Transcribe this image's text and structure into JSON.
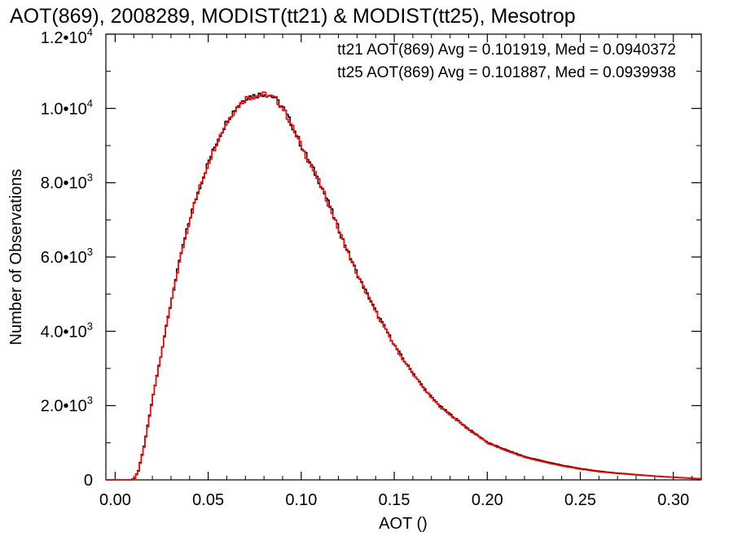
{
  "chart_data": {
    "type": "line",
    "title": "AOT(869), 2008289, MODIST(tt21) & MODIST(tt25), Mesotrop",
    "xlabel": "AOT ()",
    "ylabel": "Number of Observations",
    "xlim": [
      -0.005,
      0.315
    ],
    "ylim": [
      0,
      12000
    ],
    "x_ticks": [
      0.0,
      0.05,
      0.1,
      0.15,
      0.2,
      0.25,
      0.3
    ],
    "x_tick_labels": [
      "0.00",
      "0.05",
      "0.10",
      "0.15",
      "0.20",
      "0.25",
      "0.30"
    ],
    "y_ticks": [
      0,
      2000,
      4000,
      6000,
      8000,
      10000,
      12000
    ],
    "y_tick_labels": [
      {
        "mantissa": "0",
        "exp": ""
      },
      {
        "mantissa": "2.0•10",
        "exp": "3"
      },
      {
        "mantissa": "4.0•10",
        "exp": "3"
      },
      {
        "mantissa": "6.0•10",
        "exp": "3"
      },
      {
        "mantissa": "8.0•10",
        "exp": "3"
      },
      {
        "mantissa": "1.0•10",
        "exp": "4"
      },
      {
        "mantissa": "1.2•10",
        "exp": "4"
      }
    ],
    "grid": false,
    "step": true,
    "x": [
      -0.005,
      0.0,
      0.005,
      0.008,
      0.01,
      0.012,
      0.015,
      0.02,
      0.025,
      0.03,
      0.035,
      0.04,
      0.045,
      0.05,
      0.055,
      0.06,
      0.065,
      0.07,
      0.075,
      0.08,
      0.085,
      0.09,
      0.095,
      0.1,
      0.105,
      0.11,
      0.115,
      0.12,
      0.125,
      0.13,
      0.135,
      0.14,
      0.145,
      0.15,
      0.155,
      0.16,
      0.165,
      0.17,
      0.175,
      0.18,
      0.185,
      0.19,
      0.195,
      0.2,
      0.21,
      0.22,
      0.23,
      0.24,
      0.25,
      0.26,
      0.27,
      0.28,
      0.29,
      0.3,
      0.315
    ],
    "series": [
      {
        "name": "tt21",
        "color": "#000000",
        "values": [
          0,
          0,
          0,
          0,
          50,
          250,
          900,
          2300,
          3600,
          4900,
          6100,
          7100,
          7900,
          8600,
          9200,
          9700,
          10050,
          10300,
          10350,
          10400,
          10300,
          10000,
          9500,
          8950,
          8450,
          7950,
          7350,
          6700,
          6100,
          5500,
          5000,
          4500,
          4050,
          3600,
          3200,
          2850,
          2500,
          2200,
          1950,
          1750,
          1550,
          1350,
          1180,
          1000,
          800,
          620,
          500,
          390,
          300,
          230,
          180,
          140,
          100,
          70,
          30
        ]
      },
      {
        "name": "tt25",
        "color": "#ff0000",
        "values": [
          0,
          0,
          0,
          0,
          40,
          230,
          880,
          2280,
          3580,
          4880,
          6080,
          7080,
          7880,
          8580,
          9180,
          9680,
          10030,
          10280,
          10330,
          10380,
          10280,
          9980,
          9480,
          8930,
          8430,
          7930,
          7330,
          6680,
          6080,
          5480,
          4980,
          4480,
          4030,
          3580,
          3180,
          2830,
          2480,
          2180,
          1930,
          1730,
          1530,
          1330,
          1160,
          980,
          780,
          600,
          480,
          370,
          285,
          215,
          170,
          130,
          95,
          65,
          25
        ]
      }
    ],
    "annotations": [
      {
        "text": "tt21 AOT(869) Avg = 0.101919, Med = 0.0940372",
        "color": "#000000"
      },
      {
        "text": "tt25 AOT(869) Avg = 0.101887, Med = 0.0939938",
        "color": "#ff0000"
      }
    ]
  }
}
